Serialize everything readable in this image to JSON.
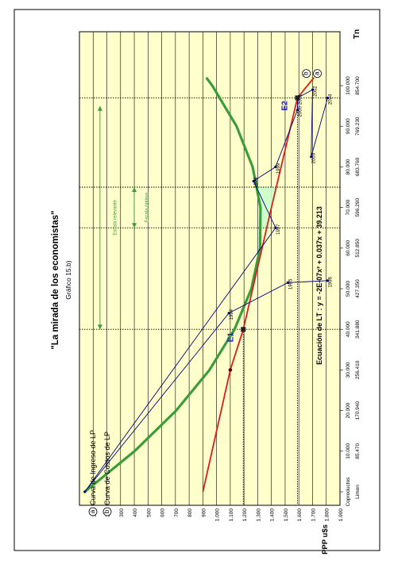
{
  "chart_data": {
    "type": "line",
    "title": "\"La mirada de los economistas\"",
    "subtitle": "Gráfico 15.b)",
    "ylabel": "PPP u$s",
    "xlabel": "Tn",
    "ylim": [
      0,
      1900
    ],
    "xlim": [
      0,
      100000
    ],
    "grid": true,
    "y_ticks": [
      "100",
      "200",
      "300",
      "400",
      "500",
      "600",
      "700",
      "800",
      "900",
      "1.000",
      "1.100",
      "1.200",
      "1.300",
      "1.400",
      "1.500",
      "1.600",
      "1.700",
      "1.800",
      "1.900"
    ],
    "y_tick_values": [
      100,
      200,
      300,
      400,
      500,
      600,
      700,
      800,
      900,
      1000,
      1100,
      1200,
      1300,
      1400,
      1500,
      1600,
      1700,
      1800,
      1900
    ],
    "x_ticks": [
      "Coproductos",
      "10.000",
      "20.000",
      "30.000",
      "40.000",
      "50.000",
      "60.000",
      "70.000",
      "80.000",
      "90.000",
      "100.000"
    ],
    "x_ticks_secondary": [
      "Limon",
      "85.470",
      "170.940",
      "256.410",
      "341.880",
      "427.350",
      "512.850",
      "596.290",
      "683.760",
      "769.230",
      "854.700"
    ],
    "x_tick_values": [
      0,
      10000,
      20000,
      30000,
      40000,
      50000,
      60000,
      70000,
      80000,
      90000,
      100000
    ],
    "series": [
      {
        "key": "a",
        "name": "Curva de Ingreso de LP",
        "color": "#e31a1c",
        "x": [
          0,
          30000,
          40000,
          70000,
          97000,
          102000
        ],
        "y": [
          900,
          1100,
          1195,
          1400,
          1590,
          1710
        ]
      },
      {
        "key": "b",
        "name": "Curva de Costos de LP",
        "color": "#3a9d3a",
        "x": [
          0,
          10000,
          20000,
          30000,
          40000,
          50000,
          60000,
          70000,
          80000,
          90000,
          100000,
          102000
        ],
        "y": [
          39,
          402,
          705,
          948,
          1131,
          1254,
          1317,
          1320,
          1263,
          1146,
          969,
          925
        ]
      },
      {
        "name": "Trayectoria",
        "color": "#000080",
        "points": [
          {
            "label": "1996",
            "x": 52000,
            "y": 1810
          },
          {
            "label": "1995",
            "x": 51500,
            "y": 1520
          },
          {
            "label": "1994",
            "x": 44000,
            "y": 1090
          },
          {
            "label": "",
            "x": 0,
            "y": 39
          },
          {
            "label": "1997",
            "x": 65000,
            "y": 1430
          },
          {
            "label": "1998",
            "x": 76500,
            "y": 1270
          },
          {
            "label": "1999",
            "x": 80000,
            "y": 1430
          },
          {
            "label": "2000",
            "x": 94000,
            "y": 1590
          },
          {
            "label": "2001",
            "x": 97000,
            "y": 1590
          },
          {
            "label": "2002",
            "x": 99000,
            "y": 1700
          },
          {
            "label": "2003",
            "x": 82500,
            "y": 1690
          },
          {
            "label": "2004",
            "x": 97000,
            "y": 1810
          }
        ]
      }
    ],
    "equilibria": [
      {
        "label": "E1",
        "x": 40000,
        "y": 1195
      },
      {
        "label": "E2",
        "x": 97000,
        "y": 1590
      }
    ],
    "legend": {
      "placement": "top-left",
      "items": [
        {
          "key": "a",
          "label": "Curva de Ingreso de LP"
        },
        {
          "key": "b",
          "label": "Curva de Costos de LP"
        }
      ]
    },
    "curve_keys": [
      "b",
      "a"
    ],
    "optimal_range_label": "Escala óptima",
    "relevant_range_label": "Escala relevante",
    "optimal_range": [
      65000,
      75000
    ],
    "relevant_range": [
      40000,
      95000
    ],
    "equation": "Ecuación de LT : y = -2E-07x² + 0.037x + 39.213",
    "colors": {
      "plot_bg": "#ffffcc",
      "grid": "#000000",
      "revenue": "#e31a1c",
      "cost": "#3a9d3a",
      "trajectory": "#000080",
      "label_blue": "#1a1acc",
      "shade": "#ccffcc"
    }
  }
}
